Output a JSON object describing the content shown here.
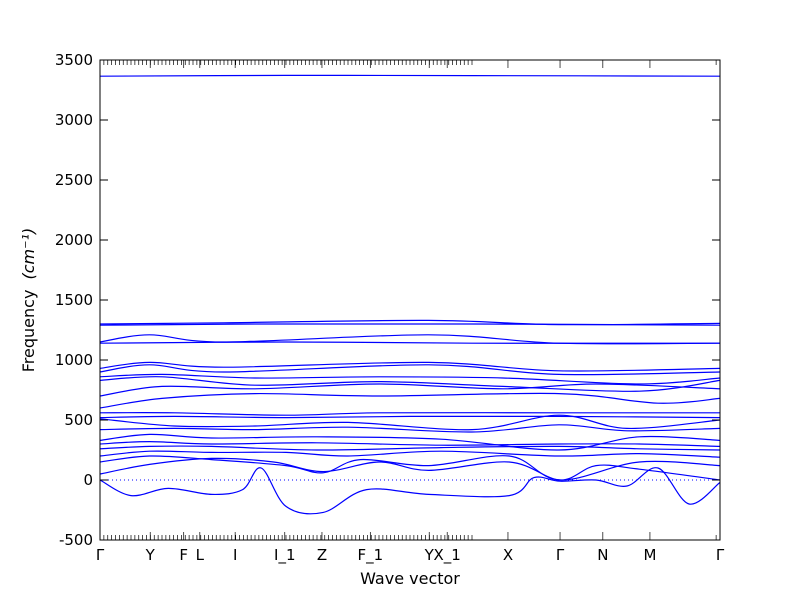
{
  "chart_data": {
    "type": "line",
    "xlabel": "Wave vector",
    "ylabel": "Frequency",
    "ylabel_unit": "(cm⁻¹)",
    "ylim": [
      -500,
      3500
    ],
    "yticks": [
      -500,
      0,
      500,
      1000,
      1500,
      2000,
      2500,
      3000,
      3500
    ],
    "grid": false,
    "line_color": "#0000ff",
    "zero_line": "dotted",
    "x_ticks": [
      {
        "label": "Γ",
        "pos": 0.0
      },
      {
        "label": "Y",
        "pos": 0.081
      },
      {
        "label": "F",
        "pos": 0.135
      },
      {
        "label": "L",
        "pos": 0.161
      },
      {
        "label": "I",
        "pos": 0.218
      },
      {
        "label": "I_1",
        "pos": 0.298
      },
      {
        "label": "Z",
        "pos": 0.358
      },
      {
        "label": "F_1",
        "pos": 0.436
      },
      {
        "label": "Y",
        "pos": 0.531
      },
      {
        "label": "X_1",
        "pos": 0.56
      },
      {
        "label": "X",
        "pos": 0.658
      },
      {
        "label": "Γ",
        "pos": 0.742
      },
      {
        "label": "N",
        "pos": 0.811
      },
      {
        "label": "M",
        "pos": 0.887
      },
      {
        "label": "Γ",
        "pos": 1.0
      }
    ],
    "series": [
      {
        "values": [
          [
            0,
            3365
          ],
          [
            0.3,
            3372
          ],
          [
            0.6,
            3370
          ],
          [
            1,
            3365
          ]
        ]
      },
      {
        "values": [
          [
            0,
            1300
          ],
          [
            0.2,
            1310
          ],
          [
            0.53,
            1330
          ],
          [
            0.74,
            1295
          ],
          [
            1,
            1305
          ]
        ]
      },
      {
        "values": [
          [
            0,
            1290
          ],
          [
            0.25,
            1300
          ],
          [
            0.6,
            1300
          ],
          [
            1,
            1290
          ]
        ]
      },
      {
        "values": [
          [
            0,
            1150
          ],
          [
            0.08,
            1210
          ],
          [
            0.2,
            1150
          ],
          [
            0.53,
            1210
          ],
          [
            0.74,
            1140
          ],
          [
            1,
            1140
          ]
        ]
      },
      {
        "values": [
          [
            0,
            1140
          ],
          [
            0.3,
            1150
          ],
          [
            0.6,
            1140
          ],
          [
            1,
            1140
          ]
        ]
      },
      {
        "values": [
          [
            0,
            930
          ],
          [
            0.08,
            980
          ],
          [
            0.2,
            940
          ],
          [
            0.53,
            980
          ],
          [
            0.74,
            910
          ],
          [
            1,
            930
          ]
        ]
      },
      {
        "values": [
          [
            0,
            900
          ],
          [
            0.08,
            960
          ],
          [
            0.2,
            900
          ],
          [
            0.53,
            960
          ],
          [
            0.74,
            880
          ],
          [
            1,
            900
          ]
        ]
      },
      {
        "values": [
          [
            0,
            860
          ],
          [
            0.1,
            880
          ],
          [
            0.25,
            850
          ],
          [
            0.45,
            860
          ],
          [
            0.65,
            850
          ],
          [
            0.87,
            800
          ],
          [
            1,
            850
          ]
        ]
      },
      {
        "values": [
          [
            0,
            830
          ],
          [
            0.1,
            860
          ],
          [
            0.25,
            790
          ],
          [
            0.45,
            820
          ],
          [
            0.65,
            780
          ],
          [
            0.87,
            740
          ],
          [
            1,
            830
          ]
        ]
      },
      {
        "values": [
          [
            0,
            700
          ],
          [
            0.1,
            780
          ],
          [
            0.25,
            760
          ],
          [
            0.45,
            800
          ],
          [
            0.65,
            760
          ],
          [
            0.8,
            800
          ],
          [
            1,
            760
          ]
        ]
      },
      {
        "values": [
          [
            0,
            600
          ],
          [
            0.1,
            680
          ],
          [
            0.25,
            720
          ],
          [
            0.45,
            700
          ],
          [
            0.74,
            720
          ],
          [
            0.9,
            640
          ],
          [
            1,
            680
          ]
        ]
      },
      {
        "values": [
          [
            0,
            560
          ],
          [
            0.12,
            560
          ],
          [
            0.3,
            540
          ],
          [
            0.45,
            560
          ],
          [
            0.74,
            560
          ],
          [
            1,
            560
          ]
        ]
      },
      {
        "values": [
          [
            0,
            520
          ],
          [
            0.12,
            530
          ],
          [
            0.3,
            520
          ],
          [
            0.5,
            530
          ],
          [
            0.74,
            530
          ],
          [
            1,
            520
          ]
        ]
      },
      {
        "values": [
          [
            0,
            510
          ],
          [
            0.12,
            450
          ],
          [
            0.25,
            450
          ],
          [
            0.4,
            480
          ],
          [
            0.6,
            420
          ],
          [
            0.74,
            540
          ],
          [
            0.85,
            430
          ],
          [
            1,
            500
          ]
        ]
      },
      {
        "values": [
          [
            0,
            420
          ],
          [
            0.12,
            430
          ],
          [
            0.25,
            420
          ],
          [
            0.4,
            440
          ],
          [
            0.6,
            400
          ],
          [
            0.74,
            460
          ],
          [
            0.85,
            410
          ],
          [
            1,
            430
          ]
        ]
      },
      {
        "values": [
          [
            0,
            330
          ],
          [
            0.08,
            380
          ],
          [
            0.18,
            350
          ],
          [
            0.35,
            360
          ],
          [
            0.55,
            340
          ],
          [
            0.74,
            250
          ],
          [
            0.87,
            360
          ],
          [
            1,
            330
          ]
        ]
      },
      {
        "values": [
          [
            0,
            300
          ],
          [
            0.08,
            320
          ],
          [
            0.18,
            300
          ],
          [
            0.35,
            310
          ],
          [
            0.55,
            290
          ],
          [
            0.74,
            300
          ],
          [
            0.87,
            300
          ],
          [
            1,
            280
          ]
        ]
      },
      {
        "values": [
          [
            0,
            260
          ],
          [
            0.08,
            280
          ],
          [
            0.18,
            280
          ],
          [
            0.35,
            250
          ],
          [
            0.55,
            270
          ],
          [
            0.74,
            280
          ],
          [
            0.87,
            260
          ],
          [
            1,
            250
          ]
        ]
      },
      {
        "values": [
          [
            0,
            200
          ],
          [
            0.08,
            240
          ],
          [
            0.18,
            230
          ],
          [
            0.3,
            230
          ],
          [
            0.4,
            200
          ],
          [
            0.55,
            240
          ],
          [
            0.74,
            200
          ],
          [
            0.87,
            220
          ],
          [
            1,
            190
          ]
        ]
      },
      {
        "values": [
          [
            0,
            150
          ],
          [
            0.08,
            200
          ],
          [
            0.18,
            170
          ],
          [
            0.3,
            120
          ],
          [
            0.36,
            60
          ],
          [
            0.42,
            170
          ],
          [
            0.53,
            120
          ],
          [
            0.66,
            200
          ],
          [
            0.742,
            0
          ],
          [
            0.87,
            150
          ],
          [
            1,
            120
          ]
        ]
      },
      {
        "values": [
          [
            0,
            50
          ],
          [
            0.08,
            130
          ],
          [
            0.18,
            180
          ],
          [
            0.28,
            150
          ],
          [
            0.36,
            70
          ],
          [
            0.45,
            150
          ],
          [
            0.53,
            80
          ],
          [
            0.66,
            150
          ],
          [
            0.742,
            0
          ],
          [
            0.8,
            120
          ],
          [
            0.87,
            90
          ],
          [
            1,
            0
          ]
        ]
      },
      {
        "values": [
          [
            0,
            0
          ],
          [
            0.05,
            -130
          ],
          [
            0.11,
            -70
          ],
          [
            0.18,
            -120
          ],
          [
            0.23,
            -80
          ],
          [
            0.26,
            100
          ],
          [
            0.3,
            -220
          ],
          [
            0.36,
            -270
          ],
          [
            0.43,
            -80
          ],
          [
            0.53,
            -120
          ],
          [
            0.66,
            -130
          ],
          [
            0.7,
            20
          ],
          [
            0.742,
            -10
          ],
          [
            0.8,
            0
          ],
          [
            0.85,
            -50
          ],
          [
            0.9,
            100
          ],
          [
            0.95,
            -200
          ],
          [
            1,
            -20
          ]
        ]
      }
    ]
  }
}
